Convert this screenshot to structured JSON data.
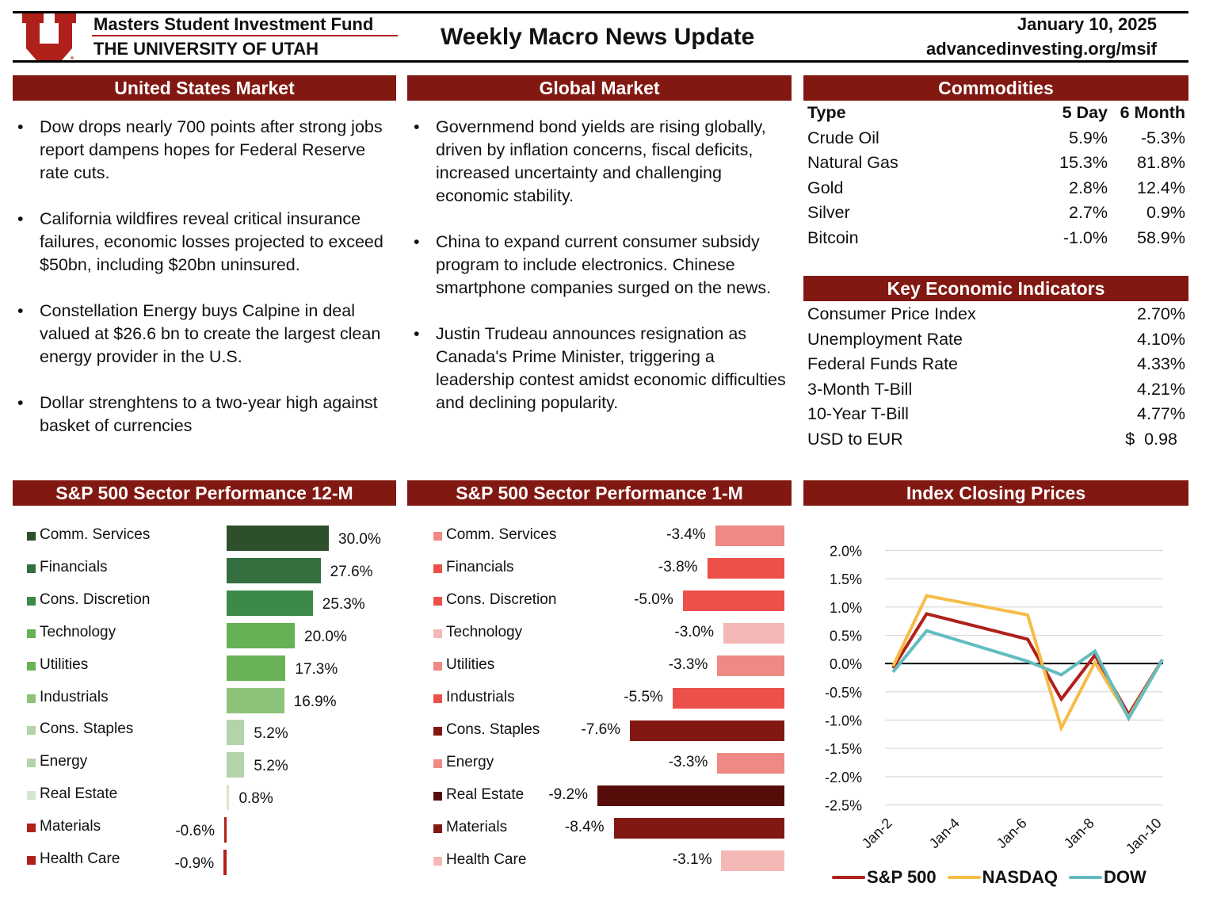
{
  "header": {
    "fund_name": "Masters Student Investment Fund",
    "university": "THE UNIVERSITY OF UTAH",
    "title": "Weekly Macro News Update",
    "date": "January 10, 2025",
    "url": "advancedinvesting.org/msif",
    "logo_letter": "U",
    "brand_color": "#b0201a",
    "section_color": "#821812"
  },
  "us_market": {
    "title": "United States Market",
    "bullets": [
      "Dow drops nearly 700 points after strong jobs report dampens hopes for Federal Reserve rate cuts.",
      "California wildfires reveal critical insurance failures, economic losses projected to exceed $50bn, including $20bn uninsured.",
      "Constellation Energy buys Calpine in deal valued at $26.6 bn to create the largest clean energy provider in the U.S.",
      "Dollar strenghtens to a two-year high against basket of currencies"
    ]
  },
  "global_market": {
    "title": "Global Market",
    "bullets": [
      "Governmend bond yields are rising globally, driven by inflation concerns, fiscal deficits, increased uncertainty and challenging economic stability.",
      "China to expand current consumer subsidy program to include electronics. Chinese smartphone companies surged on the news.",
      "Justin Trudeau announces resignation as Canada's Prime Minister, triggering a leadership contest amidst economic difficulties and declining popularity."
    ]
  },
  "commodities": {
    "title": "Commodities",
    "headers": [
      "Type",
      "5 Day",
      "6 Month"
    ],
    "rows": [
      [
        "Crude Oil",
        "5.9%",
        "-5.3%"
      ],
      [
        "Natural Gas",
        "15.3%",
        "81.8%"
      ],
      [
        "Gold",
        "2.8%",
        "12.4%"
      ],
      [
        "Silver",
        "2.7%",
        "0.9%"
      ],
      [
        "Bitcoin",
        "-1.0%",
        "58.9%"
      ]
    ]
  },
  "indicators": {
    "title": "Key Economic Indicators",
    "rows": [
      [
        "Consumer Price Index",
        "2.70%"
      ],
      [
        "Unemployment Rate",
        "4.10%"
      ],
      [
        "Federal Funds Rate",
        "4.33%"
      ],
      [
        "3-Month T-Bill",
        "4.21%"
      ],
      [
        "10-Year T-Bill",
        "4.77%"
      ],
      [
        "USD to EUR",
        "$  0.98"
      ]
    ]
  },
  "chart_data": [
    {
      "type": "bar",
      "title": "S&P 500 Sector Performance 12-M",
      "orientation": "horizontal",
      "categories": [
        "Comm. Services",
        "Financials",
        "Cons. Discretion",
        "Technology",
        "Utilities",
        "Industrials",
        "Cons. Staples",
        "Energy",
        "Real Estate",
        "Materials",
        "Health Care"
      ],
      "values": [
        30.0,
        27.6,
        25.3,
        20.0,
        17.3,
        16.9,
        5.2,
        5.2,
        0.8,
        -0.6,
        -0.9
      ],
      "labels": [
        "30.0%",
        "27.6%",
        "25.3%",
        "20.0%",
        "17.3%",
        "16.9%",
        "5.2%",
        "5.2%",
        "0.8%",
        "-0.6%",
        "-0.9%"
      ],
      "colors": [
        "#2e4f2b",
        "#336f3f",
        "#3d8a48",
        "#66b055",
        "#69b257",
        "#8dc27b",
        "#b3d4a8",
        "#b3d4a8",
        "#d5e7cf",
        "#b0201a",
        "#b0201a"
      ]
    },
    {
      "type": "bar",
      "title": "S&P 500 Sector Performance 1-M",
      "orientation": "horizontal",
      "categories": [
        "Comm. Services",
        "Financials",
        "Cons. Discretion",
        "Technology",
        "Utilities",
        "Industrials",
        "Cons. Staples",
        "Energy",
        "Real Estate",
        "Materials",
        "Health Care"
      ],
      "values": [
        -3.4,
        -3.8,
        -5.0,
        -3.0,
        -3.3,
        -5.5,
        -7.6,
        -3.3,
        -9.2,
        -8.4,
        -3.1
      ],
      "labels": [
        "-3.4%",
        "-3.8%",
        "-5.0%",
        "-3.0%",
        "-3.3%",
        "-5.5%",
        "-7.6%",
        "-3.3%",
        "-9.2%",
        "-8.4%",
        "-3.1%"
      ],
      "colors": [
        "#ee8983",
        "#ec504a",
        "#ec504a",
        "#f4b8b6",
        "#ee8983",
        "#ec504a",
        "#821812",
        "#ee8983",
        "#560d09",
        "#821812",
        "#f4b8b6"
      ]
    },
    {
      "type": "line",
      "title": "Index Closing Prices",
      "x": [
        "Jan-2",
        "Jan-3",
        "Jan-6",
        "Jan-7",
        "Jan-8",
        "Jan-9",
        "Jan-10"
      ],
      "x_day": [
        2,
        3,
        6,
        7,
        8,
        9,
        10
      ],
      "x_ticks": [
        "Jan-2",
        "Jan-4",
        "Jan-6",
        "Jan-8",
        "Jan-10"
      ],
      "x_tick_days": [
        2,
        4,
        6,
        8,
        10
      ],
      "y_ticks": [
        "2.0%",
        "1.5%",
        "1.0%",
        "0.5%",
        "0.0%",
        "-0.5%",
        "-1.0%",
        "-1.5%",
        "-2.0%",
        "-2.5%"
      ],
      "ylim": [
        -2.5,
        2.0
      ],
      "grid": true,
      "legend": "bottom",
      "series": [
        {
          "name": "S&P 500",
          "color": "#b0201a",
          "values": [
            -0.08,
            0.88,
            0.43,
            -0.63,
            0.15,
            -0.9,
            0.07
          ]
        },
        {
          "name": "NASDAQ",
          "color": "#f6bc48",
          "values": [
            -0.05,
            1.2,
            0.86,
            -1.14,
            0.02,
            -0.95,
            0.07
          ]
        },
        {
          "name": "DOW",
          "color": "#63bdbf",
          "values": [
            -0.15,
            0.58,
            0.04,
            -0.2,
            0.22,
            -0.97,
            0.07
          ]
        }
      ]
    }
  ]
}
